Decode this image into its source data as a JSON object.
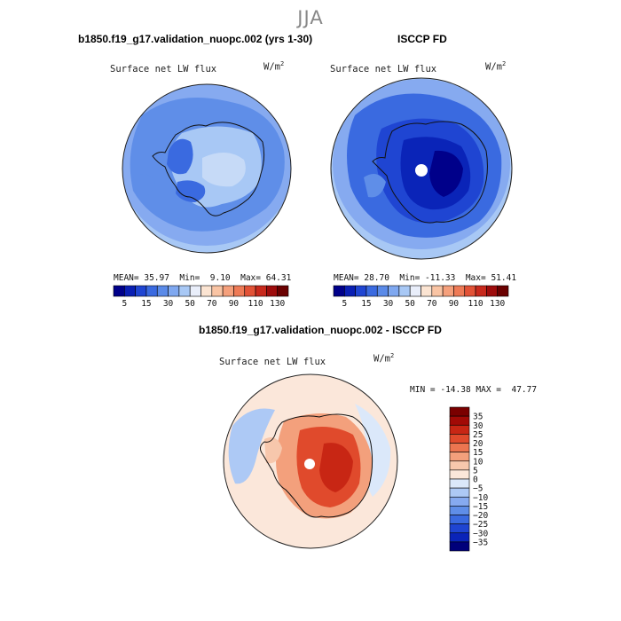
{
  "figure": {
    "season": "JJA",
    "panel1": {
      "title": "b1850.f19_g17.validation_nuopc.002 (yrs 1-30)",
      "variable": "Surface net LW flux",
      "units": "W/m",
      "units_sup": "2",
      "mean_label": "MEAN=",
      "mean": "35.97",
      "min_label": "Min=",
      "min": "9.10",
      "max_label": "Max=",
      "max": "64.31"
    },
    "panel2": {
      "title": "ISCCP FD",
      "variable": "Surface net LW flux",
      "units": "W/m",
      "units_sup": "2",
      "mean_label": "MEAN=",
      "mean": "28.70",
      "min_label": "Min=",
      "min": "-11.33",
      "max_label": "Max=",
      "max": "51.41"
    },
    "panel3": {
      "title": "b1850.f19_g17.validation_nuopc.002 - ISCCP FD",
      "variable": "Surface net LW flux",
      "units": "W/m",
      "units_sup": "2",
      "min_label": "MIN =",
      "min": "-14.38",
      "max_label": "MAX =",
      "max": "47.77"
    }
  },
  "chart_data": [
    {
      "type": "heatmap",
      "projection": "south-polar-stereographic",
      "title": "b1850.f19_g17.validation_nuopc.002 (yrs 1-30)",
      "variable": "Surface net LW flux",
      "units": "W/m^2",
      "stats": {
        "mean": 35.97,
        "min": 9.1,
        "max": 64.31
      },
      "colorbar": {
        "orientation": "horizontal",
        "levels": [
          5,
          10,
          15,
          20,
          30,
          40,
          50,
          60,
          70,
          80,
          90,
          100,
          110,
          120,
          130
        ],
        "tick_labels": [
          "5",
          "15",
          "30",
          "50",
          "70",
          "90",
          "110",
          "130"
        ],
        "colors": [
          "#00008a",
          "#0a1fb4",
          "#1f45d2",
          "#3a6ae0",
          "#5a8ae8",
          "#7fa8f0",
          "#a8c8f5",
          "#e9eefa",
          "#fbe4d2",
          "#f9c4a4",
          "#f5a07c",
          "#ee7a56",
          "#e25236",
          "#c8291c",
          "#9e0c0c",
          "#6a0000"
        ]
      }
    },
    {
      "type": "heatmap",
      "projection": "south-polar-stereographic",
      "title": "ISCCP FD",
      "variable": "Surface net LW flux",
      "units": "W/m^2",
      "stats": {
        "mean": 28.7,
        "min": -11.33,
        "max": 51.41
      },
      "colorbar": {
        "orientation": "horizontal",
        "levels": [
          5,
          10,
          15,
          20,
          30,
          40,
          50,
          60,
          70,
          80,
          90,
          100,
          110,
          120,
          130
        ],
        "tick_labels": [
          "5",
          "15",
          "30",
          "50",
          "70",
          "90",
          "110",
          "130"
        ],
        "colors": [
          "#00008a",
          "#0a1fb4",
          "#1f45d2",
          "#3a6ae0",
          "#5a8ae8",
          "#7fa8f0",
          "#a8c8f5",
          "#e9eefa",
          "#fbe4d2",
          "#f9c4a4",
          "#f5a07c",
          "#ee7a56",
          "#e25236",
          "#c8291c",
          "#9e0c0c",
          "#6a0000"
        ]
      }
    },
    {
      "type": "heatmap",
      "projection": "south-polar-stereographic",
      "title": "b1850.f19_g17.validation_nuopc.002 - ISCCP FD",
      "variable": "Surface net LW flux",
      "units": "W/m^2",
      "stats": {
        "min": -14.38,
        "max": 47.77
      },
      "colorbar": {
        "orientation": "vertical",
        "levels": [
          -35,
          -30,
          -25,
          -20,
          -15,
          -10,
          -5,
          0,
          5,
          10,
          15,
          20,
          25,
          30,
          35
        ],
        "tick_labels": [
          "35",
          "30",
          "25",
          "20",
          "15",
          "10",
          "5",
          "0",
          "−5",
          "−10",
          "−15",
          "−20",
          "−25",
          "−30",
          "−35"
        ],
        "colors": [
          "#00007a",
          "#0a24b8",
          "#1f45d2",
          "#3a6ae0",
          "#5f8ee8",
          "#86aaf0",
          "#adc9f5",
          "#dbe8fa",
          "#fbe7da",
          "#f7c7ac",
          "#f3a07c",
          "#ec7550",
          "#e04a2c",
          "#c82614",
          "#a20a06",
          "#7a0000"
        ]
      }
    }
  ]
}
